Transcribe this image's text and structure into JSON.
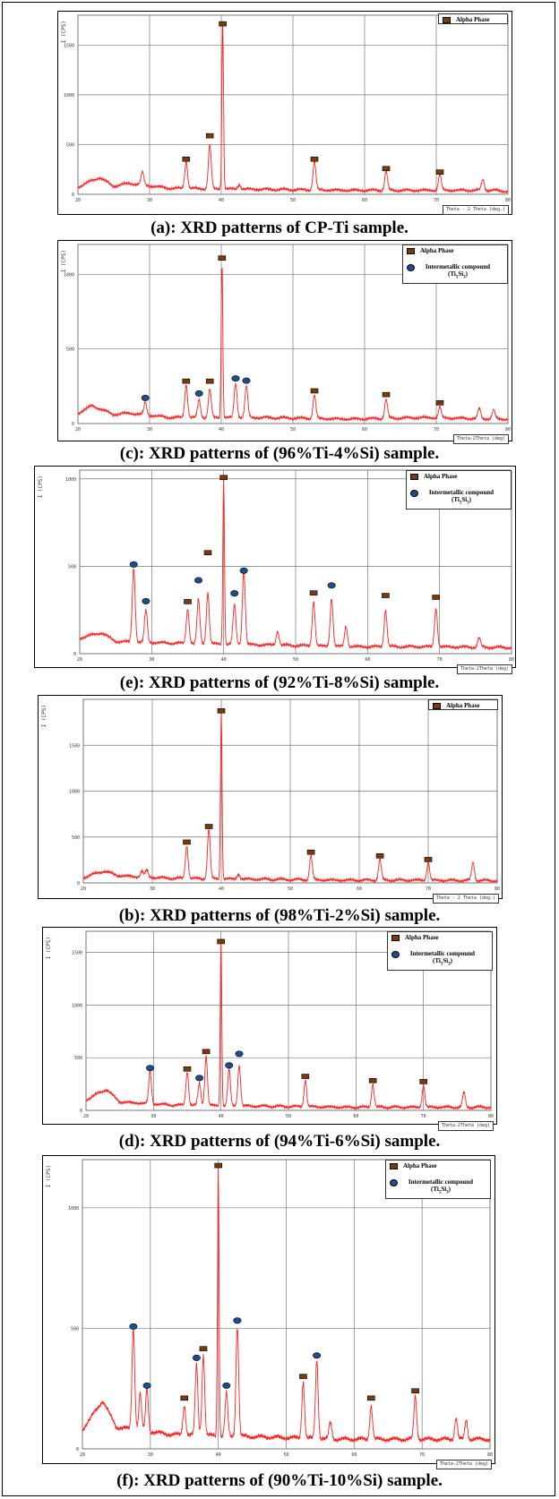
{
  "colors": {
    "pattern": "#ff2020",
    "alpha_marker": "#7a3a0a",
    "intermetallic_marker": "#1f4e8c",
    "grid": "#777777"
  },
  "chart_data": [
    {
      "id": "a",
      "type": "line",
      "caption": "(a): XRD patterns of CP-Ti sample.",
      "ylabel": "I (CPS)",
      "xlabel": "Theta - 2 Theta (deg.)",
      "xlim": [
        20,
        80
      ],
      "ylim": [
        0,
        1800
      ],
      "xticks": [
        20,
        30,
        40,
        50,
        60,
        70,
        80
      ],
      "yticks": [
        0,
        500,
        1000,
        1500
      ],
      "xtick_labels": [
        "20",
        "30",
        "40",
        "50",
        "60",
        "70",
        "80"
      ],
      "ytick_labels": [
        "0",
        "500",
        "1000",
        "1500"
      ],
      "legend": [
        {
          "marker": "alpha",
          "text": "Alpha Phase"
        }
      ],
      "peaks": [
        [
          29,
          220
        ],
        [
          35.1,
          330
        ],
        [
          38.4,
          500
        ],
        [
          40.2,
          1720
        ],
        [
          42.5,
          100
        ],
        [
          53,
          330
        ],
        [
          63,
          230
        ],
        [
          70.5,
          200
        ],
        [
          76.5,
          150
        ]
      ],
      "background": [
        [
          20,
          75
        ],
        [
          23,
          170
        ],
        [
          25,
          80
        ],
        [
          27,
          110
        ],
        [
          33,
          60
        ],
        [
          46,
          50
        ],
        [
          58,
          40
        ],
        [
          68,
          40
        ],
        [
          78,
          40
        ],
        [
          80,
          30
        ]
      ],
      "alpha_markers": [
        [
          35.1,
          340
        ],
        [
          38.4,
          575
        ],
        [
          40.2,
          1700
        ],
        [
          53,
          340
        ],
        [
          63,
          245
        ],
        [
          70.5,
          210
        ]
      ],
      "intermetallic_markers": []
    },
    {
      "id": "c",
      "type": "line",
      "caption": "(c): XRD patterns of (96%Ti-4%Si) sample.",
      "ylabel": "I (CPS)",
      "xlabel": "Theta-2Theta (deg)",
      "xlim": [
        20,
        80
      ],
      "ylim": [
        0,
        1200
      ],
      "xticks": [
        20,
        30,
        40,
        50,
        60,
        70,
        80
      ],
      "yticks": [
        0,
        500,
        1000
      ],
      "xtick_labels": [
        "20",
        "30",
        "40",
        "50",
        "60",
        "70",
        "80"
      ],
      "ytick_labels": [
        "0",
        "500",
        "1000"
      ],
      "legend": [
        {
          "marker": "alpha",
          "text": "Alpha Phase"
        },
        {
          "marker": "intermetallic",
          "text": "Intermetallic compound (Ti5Si3)"
        }
      ],
      "peaks": [
        [
          29.4,
          140
        ],
        [
          35.1,
          260
        ],
        [
          36.9,
          160
        ],
        [
          38.4,
          230
        ],
        [
          40.1,
          1090
        ],
        [
          42,
          270
        ],
        [
          43.5,
          250
        ],
        [
          53,
          190
        ],
        [
          63,
          160
        ],
        [
          70.5,
          110
        ],
        [
          76,
          100
        ],
        [
          78,
          90
        ]
      ],
      "background": [
        [
          20,
          70
        ],
        [
          22,
          120
        ],
        [
          25,
          60
        ],
        [
          27,
          70
        ],
        [
          33,
          40
        ],
        [
          46,
          40
        ],
        [
          58,
          30
        ],
        [
          68,
          40
        ],
        [
          80,
          30
        ]
      ],
      "alpha_markers": [
        [
          35.1,
          275
        ],
        [
          38.4,
          275
        ],
        [
          40.1,
          1100
        ],
        [
          53,
          210
        ],
        [
          63,
          185
        ],
        [
          70.5,
          130
        ]
      ],
      "intermetallic_markers": [
        [
          29.4,
          160
        ],
        [
          36.9,
          190
        ],
        [
          42,
          290
        ],
        [
          43.5,
          275
        ]
      ]
    },
    {
      "id": "e",
      "type": "line",
      "caption": "(e): XRD patterns of (92%Ti-8%Si) sample.",
      "ylabel": "I (CPS)",
      "xlabel": "Theta-2Theta (deg)",
      "xlim": [
        20,
        80
      ],
      "ylim": [
        0,
        1050
      ],
      "xticks": [
        20,
        30,
        40,
        50,
        60,
        70,
        80
      ],
      "yticks": [
        0,
        500,
        1000
      ],
      "xtick_labels": [
        "20",
        "30",
        "40",
        "50",
        "60",
        "70",
        "80"
      ],
      "ytick_labels": [
        "0",
        "500",
        "1000"
      ],
      "legend": [
        {
          "marker": "alpha",
          "text": "Alpha Phase"
        },
        {
          "marker": "intermetallic",
          "text": "Intermetallic compound (Ti5Si3)"
        }
      ],
      "peaks": [
        [
          27.5,
          490
        ],
        [
          29.2,
          250
        ],
        [
          35,
          260
        ],
        [
          36.5,
          310
        ],
        [
          37.8,
          350
        ],
        [
          40,
          1000
        ],
        [
          41.5,
          280
        ],
        [
          42.8,
          480
        ],
        [
          47.5,
          130
        ],
        [
          52.5,
          300
        ],
        [
          55,
          320
        ],
        [
          57,
          160
        ],
        [
          62.5,
          250
        ],
        [
          69.5,
          260
        ],
        [
          75.5,
          90
        ]
      ],
      "background": [
        [
          20,
          90
        ],
        [
          23,
          120
        ],
        [
          25,
          70
        ],
        [
          33,
          60
        ],
        [
          46,
          50
        ],
        [
          58,
          40
        ],
        [
          68,
          40
        ],
        [
          80,
          35
        ]
      ],
      "alpha_markers": [
        [
          35,
          290
        ],
        [
          37.8,
          570
        ],
        [
          40,
          1000
        ],
        [
          52.5,
          340
        ],
        [
          62.5,
          325
        ],
        [
          69.5,
          315
        ]
      ],
      "intermetallic_markers": [
        [
          27.5,
          500
        ],
        [
          29.2,
          290
        ],
        [
          36.5,
          410
        ],
        [
          41.5,
          335
        ],
        [
          42.8,
          465
        ],
        [
          55,
          380
        ]
      ]
    },
    {
      "id": "b",
      "type": "line",
      "caption": "(b): XRD patterns of (98%Ti-2%Si) sample.",
      "ylabel": "I (CPS)",
      "xlabel": "Theta - 2 Theta (deg.)",
      "xlim": [
        20,
        80
      ],
      "ylim": [
        0,
        2000
      ],
      "xticks": [
        20,
        30,
        40,
        50,
        60,
        70,
        80
      ],
      "yticks": [
        0,
        500,
        1000,
        1500
      ],
      "xtick_labels": [
        "20",
        "30",
        "40",
        "50",
        "60",
        "70",
        "80"
      ],
      "ytick_labels": [
        "0",
        "500",
        "1000",
        "1500"
      ],
      "legend": [
        {
          "marker": "alpha",
          "text": "Alpha Phase"
        }
      ],
      "peaks": [
        [
          28.5,
          130
        ],
        [
          29.2,
          140
        ],
        [
          35,
          410
        ],
        [
          38.2,
          590
        ],
        [
          40,
          1880
        ],
        [
          42.5,
          100
        ],
        [
          53,
          300
        ],
        [
          63,
          260
        ],
        [
          70,
          230
        ],
        [
          76.5,
          230
        ]
      ],
      "background": [
        [
          20,
          60
        ],
        [
          23,
          130
        ],
        [
          25,
          80
        ],
        [
          27,
          70
        ],
        [
          33,
          50
        ],
        [
          46,
          40
        ],
        [
          58,
          30
        ],
        [
          68,
          30
        ],
        [
          80,
          25
        ]
      ],
      "alpha_markers": [
        [
          35,
          430
        ],
        [
          38.2,
          600
        ],
        [
          40,
          1860
        ],
        [
          53,
          320
        ],
        [
          63,
          280
        ],
        [
          70,
          240
        ]
      ],
      "intermetallic_markers": []
    },
    {
      "id": "d",
      "type": "line",
      "caption": "(d): XRD patterns of (94%Ti-6%Si) sample.",
      "ylabel": "I (CPS)",
      "xlabel": "Theta-2Theta (deg)",
      "xlim": [
        20,
        80
      ],
      "ylim": [
        0,
        1700
      ],
      "xticks": [
        20,
        30,
        40,
        50,
        60,
        70,
        80
      ],
      "yticks": [
        0,
        500,
        1000,
        1500
      ],
      "xtick_labels": [
        "20",
        "30",
        "40",
        "50",
        "60",
        "70",
        "80"
      ],
      "ytick_labels": [
        "0",
        "500",
        "1000",
        "1500"
      ],
      "legend": [
        {
          "marker": "alpha",
          "text": "Alpha Phase"
        },
        {
          "marker": "intermetallic",
          "text": "Intermetallic compound (Ti5Si3)"
        }
      ],
      "peaks": [
        [
          29.5,
          370
        ],
        [
          35,
          370
        ],
        [
          36.8,
          260
        ],
        [
          37.8,
          520
        ],
        [
          40,
          1610
        ],
        [
          41.2,
          390
        ],
        [
          42.7,
          430
        ],
        [
          52.5,
          290
        ],
        [
          62.5,
          250
        ],
        [
          70,
          240
        ],
        [
          76,
          170
        ]
      ],
      "background": [
        [
          20,
          100
        ],
        [
          23,
          200
        ],
        [
          25,
          80
        ],
        [
          33,
          50
        ],
        [
          46,
          40
        ],
        [
          58,
          30
        ],
        [
          68,
          30
        ],
        [
          80,
          30
        ]
      ],
      "alpha_markers": [
        [
          35,
          380
        ],
        [
          37.8,
          545
        ],
        [
          40,
          1590
        ],
        [
          52.5,
          310
        ],
        [
          62.5,
          270
        ],
        [
          70,
          260
        ]
      ],
      "intermetallic_markers": [
        [
          29.5,
          385
        ],
        [
          36.8,
          290
        ],
        [
          41.2,
          410
        ],
        [
          42.7,
          520
        ]
      ]
    },
    {
      "id": "f",
      "type": "line",
      "caption": "(f): XRD patterns of (90%Ti-10%Si) sample.",
      "ylabel": "I (CPS)",
      "xlabel": "Theta-2Theta (deg)",
      "xlim": [
        20,
        80
      ],
      "ylim": [
        0,
        1200
      ],
      "xticks": [
        20,
        30,
        40,
        50,
        60,
        70,
        80
      ],
      "yticks": [
        0,
        500,
        1000
      ],
      "xtick_labels": [
        "20",
        "30",
        "40",
        "50",
        "60",
        "70",
        "80"
      ],
      "ytick_labels": [
        "0",
        "500",
        "1000"
      ],
      "legend": [
        {
          "marker": "alpha",
          "text": "Alpha Phase"
        },
        {
          "marker": "intermetallic",
          "text": "Intermetallic compound (Ti5Si3)"
        }
      ],
      "peaks": [
        [
          27.5,
          500
        ],
        [
          28.5,
          230
        ],
        [
          29.5,
          250
        ],
        [
          35,
          180
        ],
        [
          36.8,
          350
        ],
        [
          37.8,
          390
        ],
        [
          40,
          1170
        ],
        [
          41.2,
          230
        ],
        [
          42.8,
          510
        ],
        [
          52.5,
          280
        ],
        [
          54.5,
          370
        ],
        [
          56.5,
          110
        ],
        [
          62.5,
          180
        ],
        [
          69,
          220
        ],
        [
          75,
          130
        ],
        [
          76.5,
          120
        ]
      ],
      "background": [
        [
          20,
          80
        ],
        [
          23,
          200
        ],
        [
          25,
          90
        ],
        [
          33,
          60
        ],
        [
          46,
          50
        ],
        [
          58,
          40
        ],
        [
          68,
          40
        ],
        [
          80,
          40
        ]
      ],
      "alpha_markers": [
        [
          35,
          205
        ],
        [
          37.8,
          410
        ],
        [
          40,
          1170
        ],
        [
          52.5,
          295
        ],
        [
          62.5,
          205
        ],
        [
          69,
          235
        ]
      ],
      "intermetallic_markers": [
        [
          27.5,
          500
        ],
        [
          29.5,
          255
        ],
        [
          36.8,
          370
        ],
        [
          41.2,
          255
        ],
        [
          42.8,
          525
        ],
        [
          54.5,
          380
        ]
      ]
    }
  ]
}
